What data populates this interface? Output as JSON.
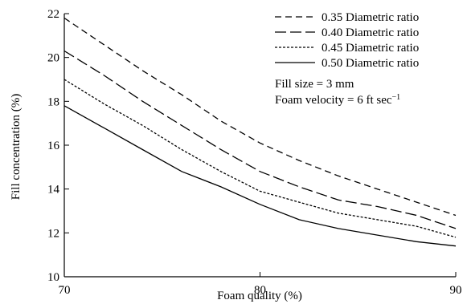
{
  "chart_data": {
    "type": "line",
    "xlabel": "Foam quality (%)",
    "ylabel": "Fill concentration (%)",
    "xlim": [
      70,
      90
    ],
    "ylim": [
      10,
      22
    ],
    "xticks": [
      70,
      80,
      90
    ],
    "yticks": [
      10,
      12,
      14,
      16,
      18,
      20,
      22
    ],
    "grid": false,
    "legend_position": "top-right",
    "series": [
      {
        "name": "0.35 Diametric ratio",
        "dash": "dashed",
        "x": [
          70,
          72,
          74,
          76,
          78,
          80,
          82,
          84,
          86,
          88,
          90
        ],
        "y": [
          21.8,
          20.6,
          19.4,
          18.3,
          17.1,
          16.1,
          15.3,
          14.6,
          14.0,
          13.4,
          12.8
        ]
      },
      {
        "name": "0.40 Diametric ratio",
        "dash": "long-dashed",
        "x": [
          70,
          72,
          74,
          76,
          78,
          80,
          82,
          84,
          86,
          88,
          90
        ],
        "y": [
          20.3,
          19.2,
          18.0,
          16.9,
          15.8,
          14.8,
          14.1,
          13.5,
          13.2,
          12.8,
          12.2
        ]
      },
      {
        "name": "0.45 Diametric ratio",
        "dash": "dotted",
        "x": [
          70,
          72,
          74,
          76,
          78,
          80,
          82,
          84,
          86,
          88,
          90
        ],
        "y": [
          19.0,
          17.9,
          16.9,
          15.8,
          14.8,
          13.9,
          13.4,
          12.9,
          12.6,
          12.3,
          11.8
        ]
      },
      {
        "name": "0.50 Diametric ratio",
        "dash": "solid",
        "x": [
          70,
          72,
          74,
          76,
          78,
          80,
          82,
          84,
          86,
          88,
          90
        ],
        "y": [
          17.8,
          16.8,
          15.8,
          14.8,
          14.1,
          13.3,
          12.6,
          12.2,
          11.9,
          11.6,
          11.4
        ]
      }
    ],
    "annotations": [
      "Fill size = 3 mm",
      "Foam velocity = 6 ft sec"
    ],
    "annotation_superscript": "−1"
  }
}
